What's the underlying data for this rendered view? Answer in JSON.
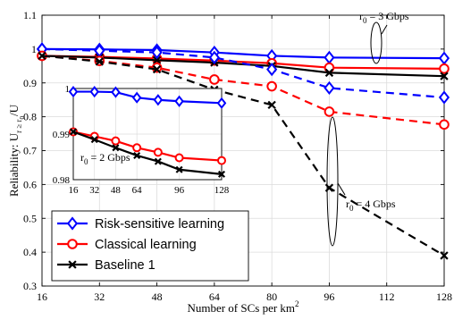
{
  "chart_data": {
    "type": "line",
    "xlabel": "Number of SCs per km",
    "xlabel_sup": "2",
    "ylabel_parts": [
      "Reliability: U",
      "r ≥ r",
      "0",
      "/U"
    ],
    "xlim": [
      16,
      128
    ],
    "ylim": [
      0.3,
      1.1
    ],
    "x_ticks": [
      16,
      32,
      48,
      64,
      80,
      96,
      112,
      128
    ],
    "y_ticks": [
      0.3,
      0.4,
      0.5,
      0.6,
      0.7,
      0.8,
      0.9,
      1.0,
      1.1
    ],
    "x_tick_labels": [
      "16",
      "32",
      "48",
      "64",
      "80",
      "96",
      "112",
      "128"
    ],
    "y_tick_labels": [
      "0.3",
      "0.4",
      "0.5",
      "0.6",
      "0.7",
      "0.8",
      "0.9",
      "1",
      "1.1"
    ],
    "grid": true,
    "legend_position": "bottom-left",
    "series": [
      {
        "name": "Risk-sensitive learning",
        "color": "#0000ff",
        "marker": "diamond",
        "x": [
          16,
          32,
          48,
          64,
          80,
          96,
          128
        ],
        "group": "r0 = 3 Gbps",
        "dashed": false,
        "values": [
          1.0,
          0.999,
          0.997,
          0.99,
          0.98,
          0.975,
          0.973
        ]
      },
      {
        "name": "Classical learning",
        "color": "#ff0000",
        "marker": "circle",
        "x": [
          16,
          32,
          48,
          64,
          80,
          96,
          128
        ],
        "group": "r0 = 3 Gbps",
        "dashed": false,
        "values": [
          0.98,
          0.977,
          0.972,
          0.966,
          0.958,
          0.945,
          0.942
        ]
      },
      {
        "name": "Baseline 1",
        "color": "#000000",
        "marker": "x",
        "x": [
          16,
          32,
          48,
          64,
          80,
          96,
          128
        ],
        "group": "r0 = 3 Gbps",
        "dashed": false,
        "values": [
          0.98,
          0.975,
          0.967,
          0.96,
          0.95,
          0.93,
          0.92
        ]
      },
      {
        "name": "",
        "color": "#0000ff",
        "marker": "diamond",
        "x": [
          16,
          32,
          48,
          64,
          80,
          96,
          128
        ],
        "group": "r0 = 4 Gbps",
        "dashed": true,
        "values": [
          1.0,
          0.995,
          0.99,
          0.975,
          0.94,
          0.885,
          0.857
        ]
      },
      {
        "name": "",
        "color": "#ff0000",
        "marker": "circle",
        "x": [
          16,
          32,
          48,
          64,
          80,
          96,
          128
        ],
        "group": "r0 = 4 Gbps",
        "dashed": true,
        "values": [
          0.98,
          0.965,
          0.945,
          0.91,
          0.89,
          0.815,
          0.777
        ]
      },
      {
        "name": "",
        "color": "#000000",
        "marker": "x",
        "x": [
          16,
          32,
          48,
          64,
          80,
          96,
          128
        ],
        "group": "r0 = 4 Gbps",
        "dashed": true,
        "values": [
          0.98,
          0.963,
          0.94,
          0.88,
          0.835,
          0.59,
          0.39
        ]
      }
    ],
    "annotations": [
      {
        "text_main": "r",
        "text_sub": "0",
        "text_rest": " = 3 Gbps"
      },
      {
        "text_main": "r",
        "text_sub": "0",
        "text_rest": " = 4 Gbps"
      }
    ],
    "inset": {
      "xlim": [
        16,
        128
      ],
      "ylim": [
        0.98,
        1.0
      ],
      "x_ticks": [
        16,
        32,
        48,
        64,
        96,
        128
      ],
      "x_tick_labels": [
        "16",
        "32",
        "48",
        "64",
        "96",
        "128"
      ],
      "y_ticks": [
        0.98,
        0.99,
        1.0
      ],
      "y_tick_labels": [
        "0.98",
        "0.99",
        "1"
      ],
      "label": {
        "text_main": "r",
        "text_sub": "0",
        "text_rest": " = 2 Gbps"
      },
      "series": [
        {
          "color": "#0000ff",
          "marker": "diamond",
          "x": [
            16,
            32,
            48,
            64,
            80,
            96,
            128
          ],
          "values": [
            0.9993,
            0.9993,
            0.9992,
            0.998,
            0.9975,
            0.9972,
            0.9968
          ]
        },
        {
          "color": "#ff0000",
          "marker": "circle",
          "x": [
            16,
            32,
            48,
            64,
            80,
            96,
            128
          ],
          "values": [
            0.9905,
            0.9895,
            0.9885,
            0.987,
            0.986,
            0.9848,
            0.9842
          ]
        },
        {
          "color": "#000000",
          "marker": "x",
          "x": [
            16,
            32,
            48,
            64,
            80,
            96,
            128
          ],
          "values": [
            0.9905,
            0.9888,
            0.987,
            0.9853,
            0.984,
            0.9822,
            0.9812
          ]
        }
      ]
    }
  }
}
